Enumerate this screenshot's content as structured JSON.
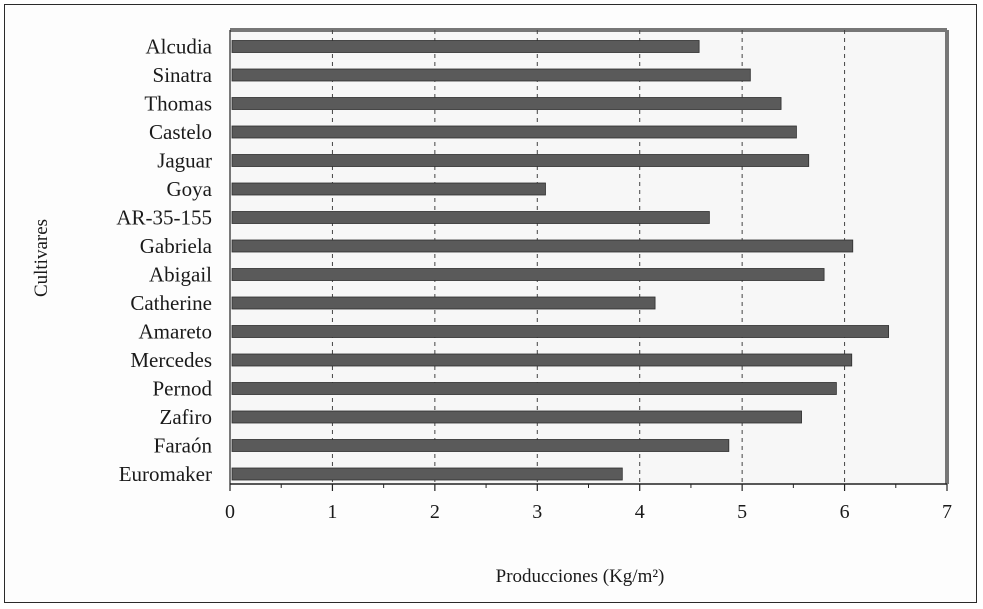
{
  "chart_data": {
    "type": "bar",
    "orientation": "horizontal",
    "title": "",
    "xlabel": "Producciones (Kg/m²)",
    "ylabel": "Cultivares",
    "xlim": [
      0,
      7
    ],
    "xticks": [
      "0",
      "1",
      "2",
      "3",
      "4",
      "5",
      "6",
      "7"
    ],
    "grid": "vertical dashed",
    "categories": [
      "Alcudia",
      "Sinatra",
      "Thomas",
      "Castelo",
      "Jaguar",
      "Goya",
      "AR-35-155",
      "Gabriela",
      "Abigail",
      "Catherine",
      "Amareto",
      "Mercedes",
      "Pernod",
      "Zafiro",
      "Faraón",
      "Euromaker"
    ],
    "values": [
      4.58,
      5.08,
      5.38,
      5.53,
      5.65,
      3.08,
      4.68,
      6.08,
      5.8,
      4.15,
      6.43,
      6.07,
      5.92,
      5.58,
      4.87,
      3.83
    ],
    "bar_color": "#5a5a5a"
  }
}
